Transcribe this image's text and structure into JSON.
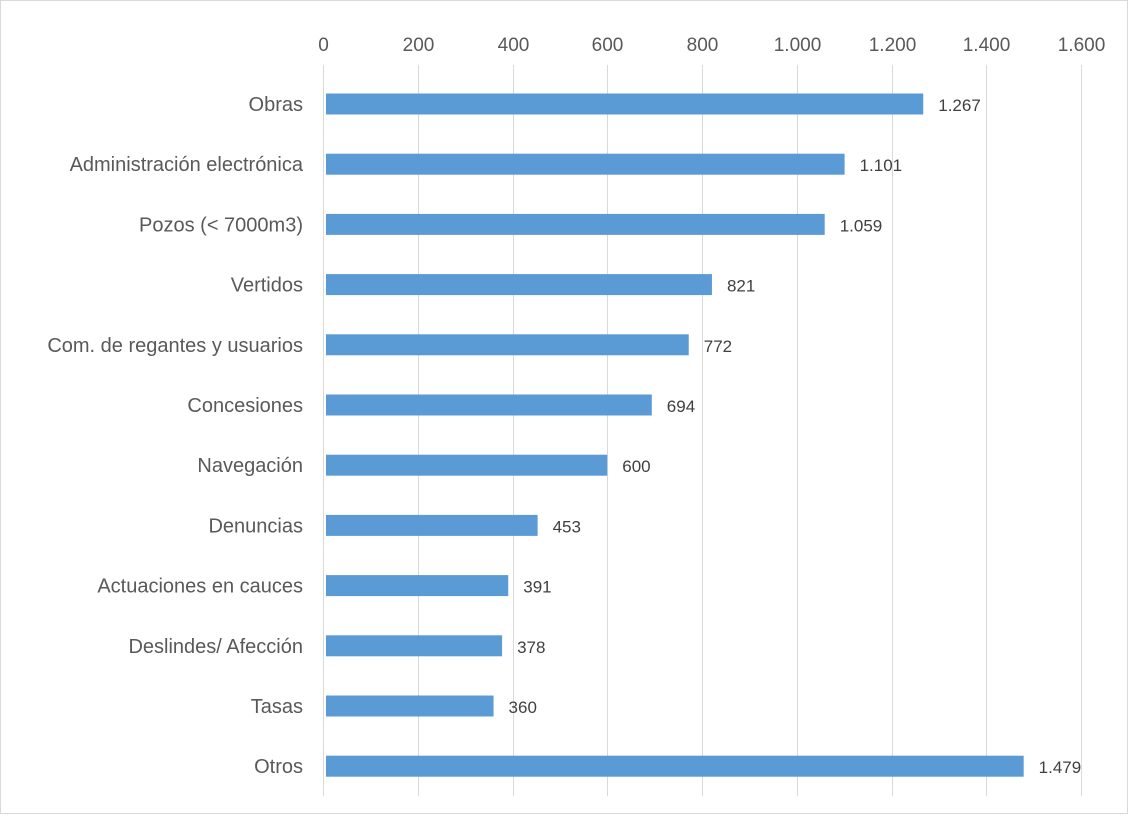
{
  "chart_data": {
    "type": "bar",
    "orientation": "horizontal",
    "title": "",
    "xlabel": "",
    "ylabel": "",
    "categories": [
      "Obras",
      "Administración electrónica",
      "Pozos (< 7000m3)",
      "Vertidos",
      "Com. de regantes y usuarios",
      "Concesiones",
      "Navegación",
      "Denuncias",
      "Actuaciones en cauces",
      "Deslindes/ Afección",
      "Tasas",
      "Otros"
    ],
    "values": [
      1267,
      1101,
      1059,
      821,
      772,
      694,
      600,
      453,
      391,
      378,
      360,
      1479
    ],
    "value_labels": [
      "1.267",
      "1.101",
      "1.059",
      "821",
      "772",
      "694",
      "600",
      "453",
      "391",
      "378",
      "360",
      "1.479"
    ],
    "xlim": [
      0,
      1600
    ],
    "x_ticks": [
      0,
      200,
      400,
      600,
      800,
      1000,
      1200,
      1400,
      1600
    ],
    "x_tick_labels": [
      "0",
      "200",
      "400",
      "600",
      "800",
      "1.000",
      "1.200",
      "1.400",
      "1.600"
    ],
    "x_axis_position": "top",
    "grid": true,
    "legend": "none",
    "colors": {
      "bar": "#5b9bd5",
      "grid": "#d9d9d9",
      "text": "#595959",
      "label": "#404040"
    }
  }
}
